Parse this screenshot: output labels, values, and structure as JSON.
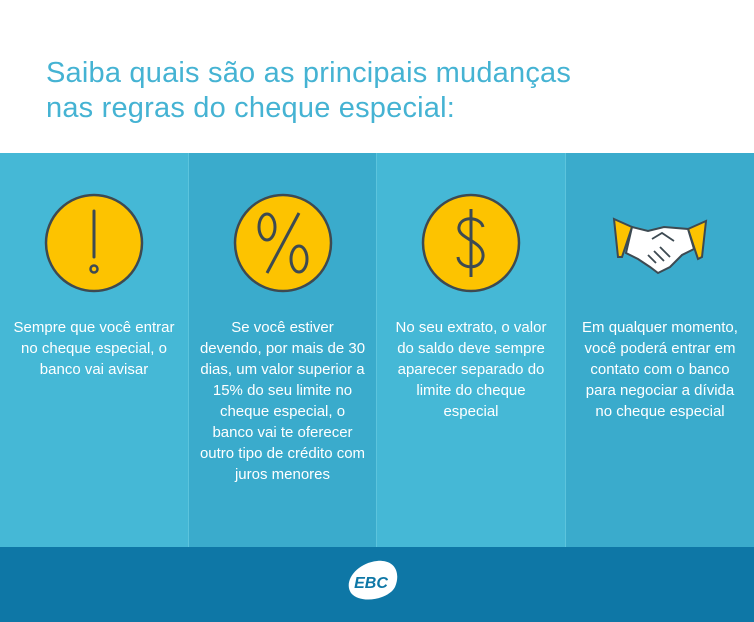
{
  "header": {
    "title_line1": "Saiba quais são as principais mudanças",
    "title_line2": "nas regras do cheque especial:"
  },
  "columns": [
    {
      "icon": "exclamation-icon",
      "text": "Sempre que você entrar no cheque especial, o banco vai avisar"
    },
    {
      "icon": "percent-icon",
      "text": "Se você estiver devendo, por mais de 30 dias, um valor superior a 15% do seu limite no cheque especial, o banco vai te oferecer outro tipo de crédito com juros menores"
    },
    {
      "icon": "dollar-icon",
      "text": "No seu extrato, o valor do saldo deve sempre aparecer separado do limite do cheque especial"
    },
    {
      "icon": "handshake-icon",
      "text": "Em qualquer momento, você poderá entrar em contato com o banco para negociar a dívida no cheque especial"
    }
  ],
  "footer": {
    "logo": "EBC"
  },
  "colors": {
    "title": "#45b3d3",
    "light": "#45b8d6",
    "dark": "#3aabcc",
    "icon_fill": "#fdc300",
    "footer": "#0e77a6"
  }
}
